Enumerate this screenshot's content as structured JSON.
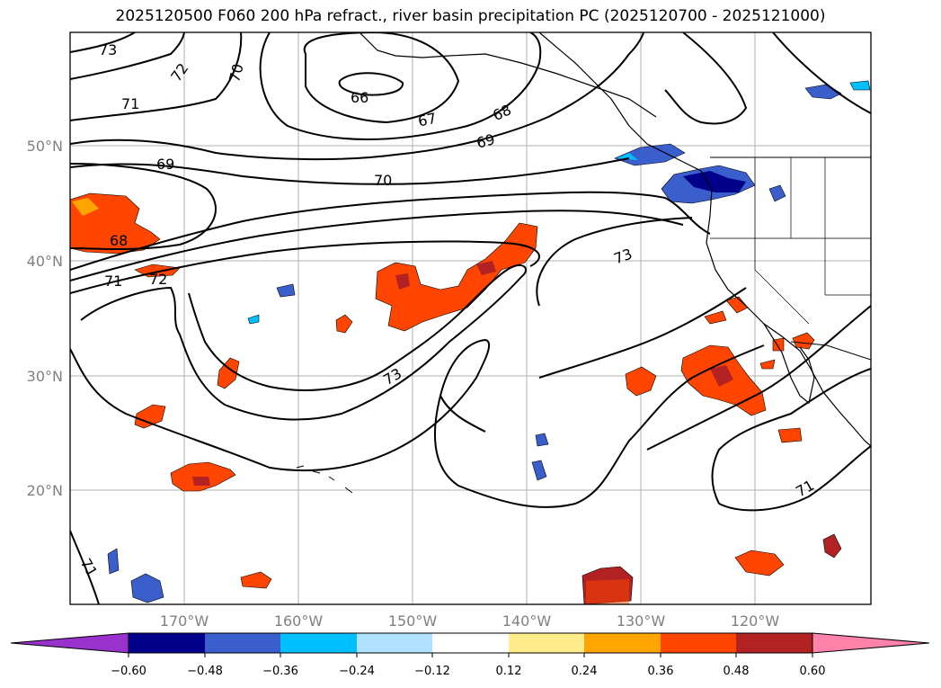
{
  "title": "2025120500 F060 200 hPa refract., river basin precipitation PC (2025120700 - 2025121000)",
  "lat_labels": [
    "50°N",
    "40°N",
    "30°N",
    "20°N"
  ],
  "lon_labels": [
    "170°W",
    "160°W",
    "150°W",
    "140°W",
    "130°W",
    "120°W"
  ],
  "contour_labels": [
    "73",
    "72",
    "70",
    "71",
    "66",
    "67",
    "68",
    "69",
    "69",
    "70",
    "68",
    "71",
    "72",
    "73",
    "73",
    "71",
    "71"
  ],
  "colorbar": {
    "ticks": [
      "−0.60",
      "−0.48",
      "−0.36",
      "−0.24",
      "−0.12",
      "0.12",
      "0.24",
      "0.36",
      "0.48",
      "0.60"
    ],
    "colors": [
      "#9932cc",
      "#00008b",
      "#3a5fcd",
      "#00bfff",
      "#b0e2ff",
      "#ffffff",
      "#ffec8b",
      "#ffa500",
      "#ff4500",
      "#b22222",
      "#ff82ab"
    ]
  },
  "palette": {
    "grid": "#b0b0b0",
    "contour": "#000000",
    "label_gray": "#808080"
  }
}
